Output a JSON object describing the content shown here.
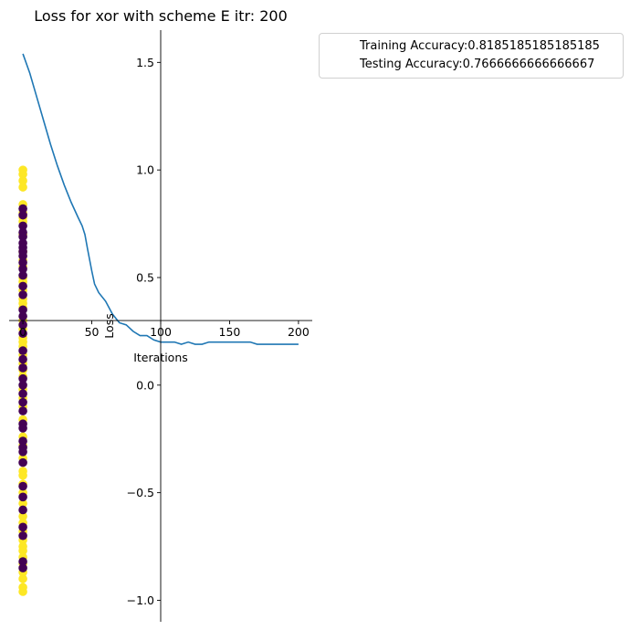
{
  "chart_data": {
    "type": "line",
    "title": "Loss for xor with scheme E itr: 200",
    "xlabel": "Iterations",
    "ylabel": "Loss",
    "xlim": [
      -10,
      210
    ],
    "ylim": [
      -1.1,
      1.65
    ],
    "xticks": [
      0,
      50,
      100,
      150,
      200
    ],
    "yticks": [
      -1.0,
      -0.5,
      0.0,
      0.5,
      1.0,
      1.5
    ],
    "xtick_labels": [
      "0",
      "50",
      "100",
      "150",
      "200"
    ],
    "ytick_labels": [
      "−1.0",
      "−0.5",
      "0.0",
      "0.5",
      "1.0",
      "1.5"
    ],
    "spines": "centered at origin (x-axis at y=0.3, y-axis at x=100)",
    "legend": {
      "position": "outside right, top",
      "entries": [
        "Training Accuracy:0.8185185185185185",
        "Testing Accuracy:0.7666666666666667"
      ]
    },
    "series": [
      {
        "color": "#1f77b4",
        "x": [
          0,
          5,
          10,
          15,
          20,
          25,
          30,
          35,
          40,
          43,
          45,
          47,
          50,
          52,
          55,
          60,
          65,
          70,
          75,
          80,
          85,
          90,
          95,
          100,
          105,
          110,
          115,
          120,
          125,
          130,
          135,
          140,
          145,
          150,
          155,
          160,
          165,
          170,
          175,
          180,
          185,
          190,
          195,
          200
        ],
        "y": [
          1.54,
          1.45,
          1.34,
          1.23,
          1.12,
          1.02,
          0.93,
          0.85,
          0.78,
          0.74,
          0.7,
          0.63,
          0.53,
          0.47,
          0.43,
          0.39,
          0.33,
          0.29,
          0.28,
          0.25,
          0.23,
          0.23,
          0.21,
          0.2,
          0.2,
          0.2,
          0.19,
          0.2,
          0.19,
          0.19,
          0.2,
          0.2,
          0.2,
          0.2,
          0.2,
          0.2,
          0.2,
          0.19,
          0.19,
          0.19,
          0.19,
          0.19,
          0.19,
          0.19
        ]
      }
    ],
    "scatter": {
      "x_value": 0,
      "colors": {
        "class_0": "#440154",
        "class_1": "#fde725"
      },
      "points_class_1": [
        1.0,
        0.98,
        0.95,
        0.92,
        0.84,
        0.8,
        0.78,
        0.76,
        0.7,
        0.62,
        0.58,
        0.55,
        0.5,
        0.48,
        0.44,
        0.4,
        0.38,
        0.36,
        0.3,
        0.26,
        0.22,
        0.2,
        0.18,
        0.14,
        0.1,
        0.07,
        0.04,
        -0.02,
        -0.06,
        -0.1,
        -0.16,
        -0.24,
        -0.28,
        -0.34,
        -0.4,
        -0.42,
        -0.46,
        -0.5,
        -0.55,
        -0.61,
        -0.64,
        -0.68,
        -0.72,
        -0.75,
        -0.77,
        -0.8,
        -0.83,
        -0.87,
        -0.9,
        -0.94,
        -0.96
      ],
      "points_class_0": [
        0.82,
        0.79,
        0.74,
        0.71,
        0.69,
        0.66,
        0.64,
        0.62,
        0.6,
        0.57,
        0.54,
        0.51,
        0.46,
        0.42,
        0.35,
        0.32,
        0.28,
        0.24,
        0.16,
        0.12,
        0.08,
        0.03,
        0.0,
        -0.04,
        -0.08,
        -0.12,
        -0.18,
        -0.2,
        -0.26,
        -0.29,
        -0.31,
        -0.36,
        -0.47,
        -0.52,
        -0.58,
        -0.66,
        -0.7,
        -0.82,
        -0.85
      ]
    }
  }
}
